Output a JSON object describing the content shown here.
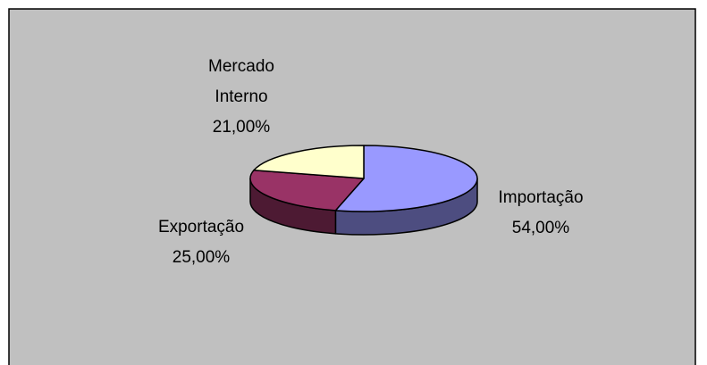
{
  "chart_data": {
    "type": "pie",
    "categories": [
      "Importação",
      "Exportação",
      "Mercado Interno"
    ],
    "values": [
      54,
      25,
      21
    ],
    "value_labels": [
      "54,00%",
      "25,00%",
      "21,00%"
    ],
    "colors": [
      "#9999ff",
      "#993366",
      "#ffffcc"
    ]
  }
}
